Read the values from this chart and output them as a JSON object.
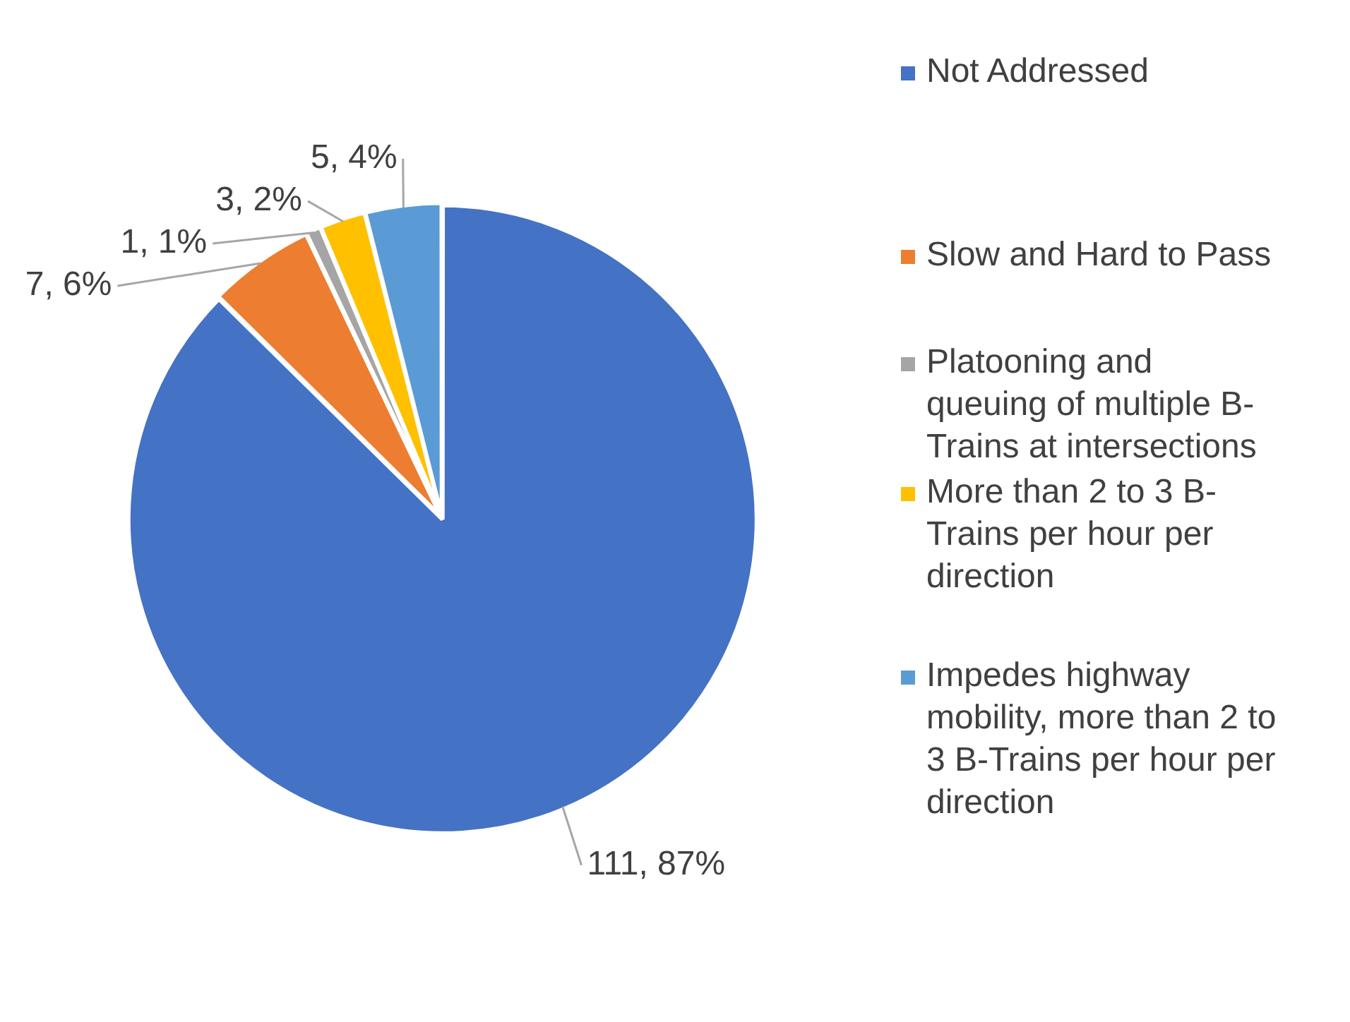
{
  "chart_data": {
    "type": "pie",
    "categories": [
      "Not Addressed",
      "Slow and Hard to Pass",
      "Platooning and queuing of multiple B-Trains at intersections",
      "More than 2 to 3 B-Trains per hour per direction",
      "Impedes highway mobility, more than 2 to 3 B-Trains per hour per direction"
    ],
    "values": [
      111,
      7,
      1,
      3,
      5
    ],
    "colors": [
      "#4472c4",
      "#ed7d31",
      "#a5a5a5",
      "#ffc000",
      "#5b9bd5"
    ],
    "value_labels": [
      "111, 87%",
      "7, 6%",
      "1, 1%",
      "3, 2%",
      "5, 4%"
    ],
    "legend": "right"
  }
}
